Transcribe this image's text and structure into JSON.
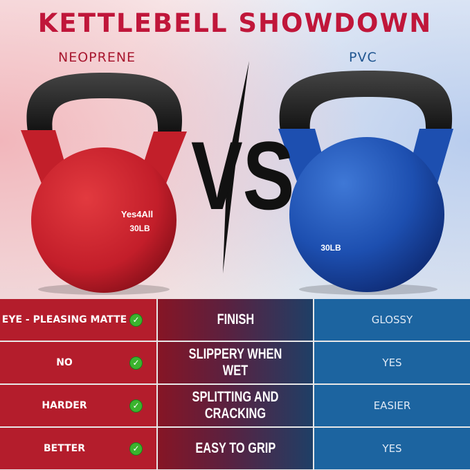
{
  "header": {
    "title": "KETTLEBELL SHOWDOWN",
    "left_label": "NEOPRENE",
    "right_label": "PVC",
    "vs": "VS"
  },
  "products": {
    "left": {
      "brand": "Yes4All",
      "weight": "30LB",
      "color": "#c8202c"
    },
    "right": {
      "weight": "30LB",
      "color": "#1c4fb0"
    }
  },
  "colors": {
    "title": "#c0163a",
    "left_column": "#b41d2c",
    "right_column": "#1c64a0",
    "check": "#3bb32e"
  },
  "comparison": {
    "rows": [
      {
        "neoprene": "EYE - PLEASING MATTE",
        "feature": "FINISH",
        "pvc": "GLOSSY",
        "icon": "check-circle-icon"
      },
      {
        "neoprene": "NO",
        "feature": "SLIPPERY WHEN WET",
        "pvc": "YES",
        "icon": "check-circle-icon"
      },
      {
        "neoprene": "HARDER",
        "feature": "SPLITTING AND CRACKING",
        "pvc": "EASIER",
        "icon": "check-circle-icon"
      },
      {
        "neoprene": "BETTER",
        "feature": "EASY TO GRIP",
        "pvc": "YES",
        "icon": "check-circle-icon"
      }
    ]
  }
}
